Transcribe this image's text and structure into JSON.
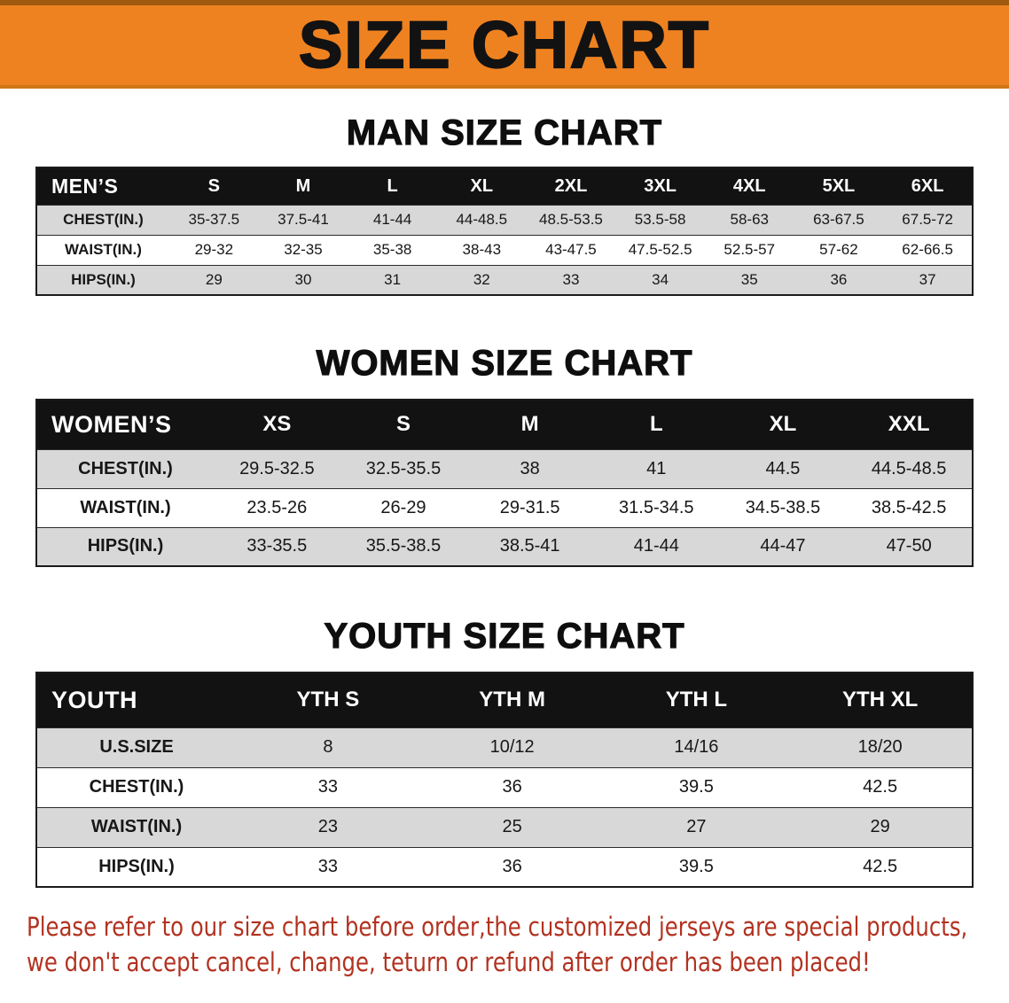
{
  "banner": {
    "title": "SIZE CHART"
  },
  "colors": {
    "banner_bg": "#ef8220",
    "banner_text": "#121212",
    "table_header_bg": "#121212",
    "table_header_text": "#ffffff",
    "row_shade": "#d8d8d8",
    "disclaimer_text": "#b23220"
  },
  "sections": [
    {
      "key": "men",
      "heading": "MAN SIZE CHART",
      "table": {
        "corner": "MEN’S",
        "columns": [
          "S",
          "M",
          "L",
          "XL",
          "2XL",
          "3XL",
          "4XL",
          "5XL",
          "6XL"
        ],
        "rows": [
          {
            "label": "CHEST(IN.)",
            "values": [
              "35-37.5",
              "37.5-41",
              "41-44",
              "44-48.5",
              "48.5-53.5",
              "53.5-58",
              "58-63",
              "63-67.5",
              "67.5-72"
            ]
          },
          {
            "label": "WAIST(IN.)",
            "values": [
              "29-32",
              "32-35",
              "35-38",
              "38-43",
              "43-47.5",
              "47.5-52.5",
              "52.5-57",
              "57-62",
              "62-66.5"
            ]
          },
          {
            "label": "HIPS(IN.)",
            "values": [
              "29",
              "30",
              "31",
              "32",
              "33",
              "34",
              "35",
              "36",
              "37"
            ]
          }
        ]
      }
    },
    {
      "key": "women",
      "heading": "WOMEN SIZE CHART",
      "table": {
        "corner": "WOMEN’S",
        "columns": [
          "XS",
          "S",
          "M",
          "L",
          "XL",
          "XXL"
        ],
        "rows": [
          {
            "label": "CHEST(IN.)",
            "values": [
              "29.5-32.5",
              "32.5-35.5",
              "38",
              "41",
              "44.5",
              "44.5-48.5"
            ]
          },
          {
            "label": "WAIST(IN.)",
            "values": [
              "23.5-26",
              "26-29",
              "29-31.5",
              "31.5-34.5",
              "34.5-38.5",
              "38.5-42.5"
            ]
          },
          {
            "label": "HIPS(IN.)",
            "values": [
              "33-35.5",
              "35.5-38.5",
              "38.5-41",
              "41-44",
              "44-47",
              "47-50"
            ]
          }
        ]
      }
    },
    {
      "key": "youth",
      "heading": "YOUTH SIZE CHART",
      "table": {
        "corner": "YOUTH",
        "columns": [
          "YTH S",
          "YTH M",
          "YTH L",
          "YTH XL"
        ],
        "rows": [
          {
            "label": "U.S.SIZE",
            "values": [
              "8",
              "10/12",
              "14/16",
              "18/20"
            ]
          },
          {
            "label": "CHEST(IN.)",
            "values": [
              "33",
              "36",
              "39.5",
              "42.5"
            ]
          },
          {
            "label": "WAIST(IN.)",
            "values": [
              "23",
              "25",
              "27",
              "29"
            ]
          },
          {
            "label": "HIPS(IN.)",
            "values": [
              "33",
              "36",
              "39.5",
              "42.5"
            ]
          }
        ]
      }
    }
  ],
  "disclaimer": {
    "line1": "Please refer to our size chart before order,the customized jerseys are special products,",
    "line2": "we don't accept cancel, change, teturn or refund after order has been placed!"
  }
}
